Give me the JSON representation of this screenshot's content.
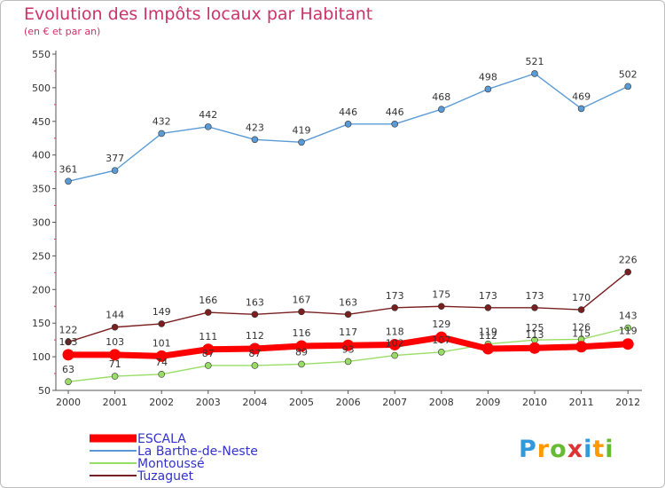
{
  "chart_data": {
    "type": "line",
    "title": "Evolution des Impôts locaux par Habitant",
    "subtitle": "(en € et par an)",
    "x": [
      "2000",
      "2001",
      "2002",
      "2003",
      "2004",
      "2005",
      "2006",
      "2007",
      "2008",
      "2009",
      "2010",
      "2011",
      "2012"
    ],
    "ylim": [
      50,
      550
    ],
    "yticks": [
      50,
      100,
      150,
      200,
      250,
      300,
      350,
      400,
      450,
      500,
      550
    ],
    "grid": false,
    "legend_position": "bottom-left",
    "series": [
      {
        "name": "ESCALA",
        "color": "#ff0000",
        "values": [
          103,
          103,
          101,
          111,
          112,
          116,
          117,
          118,
          129,
          112,
          113,
          115,
          119
        ]
      },
      {
        "name": "La Barthe-de-Neste",
        "color": "#5b9bd5",
        "values": [
          361,
          377,
          432,
          442,
          423,
          419,
          446,
          446,
          468,
          498,
          521,
          469,
          502
        ]
      },
      {
        "name": "Montoussé",
        "color": "#99dd66",
        "values": [
          63,
          71,
          74,
          87,
          87,
          89,
          93,
          102,
          107,
          119,
          125,
          126,
          143
        ]
      },
      {
        "name": "Tuzaguet",
        "color": "#7a1f1f",
        "values": [
          122,
          144,
          149,
          166,
          163,
          167,
          163,
          173,
          175,
          173,
          173,
          170,
          226
        ]
      }
    ]
  },
  "logo": {
    "text": "Proxiti"
  }
}
